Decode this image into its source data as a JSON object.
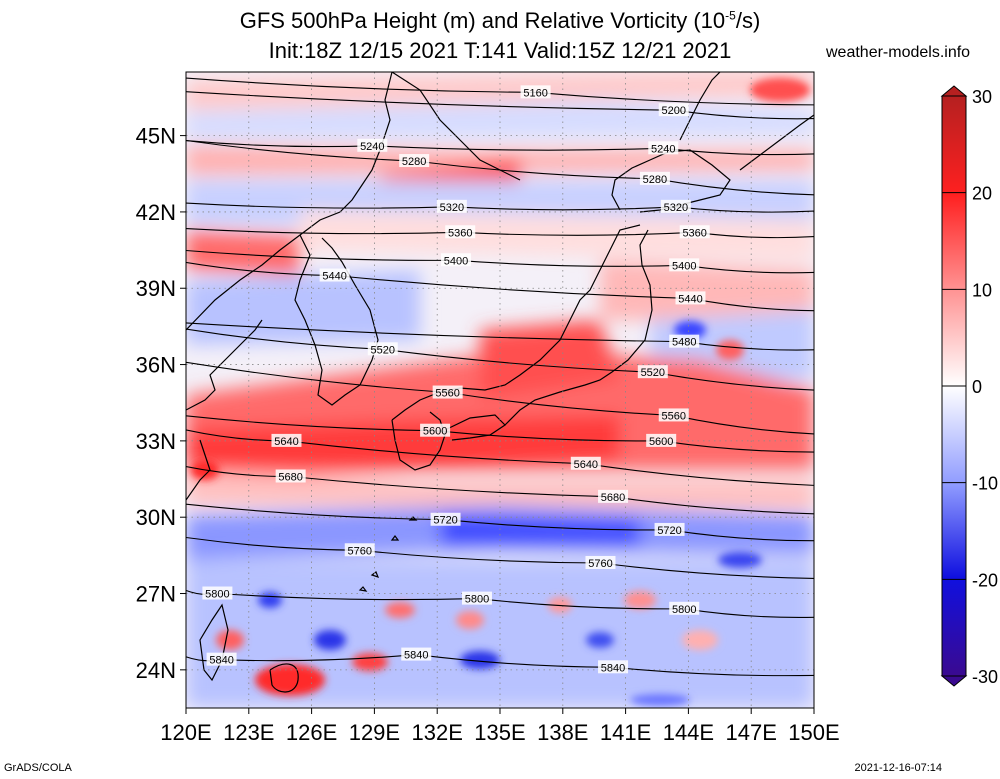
{
  "header": {
    "title_line1_prefix": "GFS 500hPa Height (m) and Relative Vorticity (10",
    "title_line1_exp": "-5",
    "title_line1_suffix": "/s)",
    "title_line2": "Init:18Z 12/15 2021 T:141 Valid:15Z 12/21 2021",
    "site": "weather-models.info"
  },
  "footer": {
    "left": "GrADS/COLA",
    "right": "2021-12-16-07:14"
  },
  "map": {
    "lat_labels": [
      "45N",
      "42N",
      "39N",
      "36N",
      "33N",
      "30N",
      "27N",
      "24N"
    ],
    "lat_values": [
      45,
      42,
      39,
      36,
      33,
      30,
      27,
      24
    ],
    "lon_labels": [
      "120E",
      "123E",
      "126E",
      "129E",
      "132E",
      "135E",
      "138E",
      "141E",
      "144E",
      "147E",
      "150E"
    ],
    "lon_values": [
      120,
      123,
      126,
      129,
      132,
      135,
      138,
      141,
      144,
      147,
      150
    ],
    "lat_range": [
      22.5,
      47.5
    ],
    "lon_range": [
      120,
      150
    ],
    "height_contours": [
      {
        "label": "5160",
        "label_positions": [
          [
            136.7,
            46.7
          ]
        ]
      },
      {
        "label": "5200",
        "label_positions": [
          [
            143.3,
            46.0
          ]
        ]
      },
      {
        "label": "5240",
        "label_positions": [
          [
            128.9,
            44.6
          ],
          [
            142.8,
            44.5
          ]
        ]
      },
      {
        "label": "5280",
        "label_positions": [
          [
            130.9,
            44.0
          ],
          [
            142.4,
            43.3
          ]
        ]
      },
      {
        "label": "5320",
        "label_positions": [
          [
            132.7,
            42.2
          ],
          [
            143.4,
            42.2
          ]
        ]
      },
      {
        "label": "5360",
        "label_positions": [
          [
            133.1,
            41.2
          ],
          [
            144.3,
            41.2
          ]
        ]
      },
      {
        "label": "5400",
        "label_positions": [
          [
            132.9,
            40.1
          ],
          [
            143.8,
            39.9
          ]
        ]
      },
      {
        "label": "5440",
        "label_positions": [
          [
            127.1,
            39.5
          ],
          [
            144.1,
            38.6
          ]
        ]
      },
      {
        "label": "5480",
        "label_positions": [
          [
            143.8,
            36.9
          ]
        ]
      },
      {
        "label": "5520",
        "label_positions": [
          [
            129.4,
            36.6
          ],
          [
            142.3,
            35.7
          ]
        ]
      },
      {
        "label": "5560",
        "label_positions": [
          [
            132.5,
            34.9
          ],
          [
            143.3,
            34.0
          ]
        ]
      },
      {
        "label": "5600",
        "label_positions": [
          [
            131.9,
            33.4
          ],
          [
            142.7,
            33.0
          ]
        ]
      },
      {
        "label": "5640",
        "label_positions": [
          [
            124.8,
            33.0
          ],
          [
            139.1,
            32.1
          ]
        ]
      },
      {
        "label": "5680",
        "label_positions": [
          [
            125.0,
            31.6
          ],
          [
            140.4,
            30.8
          ]
        ]
      },
      {
        "label": "5720",
        "label_positions": [
          [
            132.4,
            29.9
          ],
          [
            143.1,
            29.5
          ]
        ]
      },
      {
        "label": "5760",
        "label_positions": [
          [
            128.3,
            28.7
          ],
          [
            139.8,
            28.2
          ]
        ]
      },
      {
        "label": "5800",
        "label_positions": [
          [
            121.5,
            27.0
          ],
          [
            133.9,
            26.8
          ],
          [
            143.8,
            26.4
          ]
        ]
      },
      {
        "label": "5840",
        "label_positions": [
          [
            121.7,
            24.4
          ],
          [
            131.0,
            24.6
          ],
          [
            140.4,
            24.1
          ]
        ]
      }
    ]
  },
  "colorbar": {
    "labels": [
      "30",
      "20",
      "10",
      "0",
      "-10",
      "-20",
      "-30"
    ],
    "values": [
      30,
      20,
      10,
      0,
      -10,
      -20,
      -30
    ]
  },
  "colors": {
    "positive_strong": "#cc2a2a",
    "positive_mid": "#ff4a4a",
    "positive_weak": "#ffc8c8",
    "neutral": "#ffffff",
    "negative_weak": "#c8d2ff",
    "negative_mid": "#3a46ff",
    "negative_strong": "#4a0a9a"
  }
}
